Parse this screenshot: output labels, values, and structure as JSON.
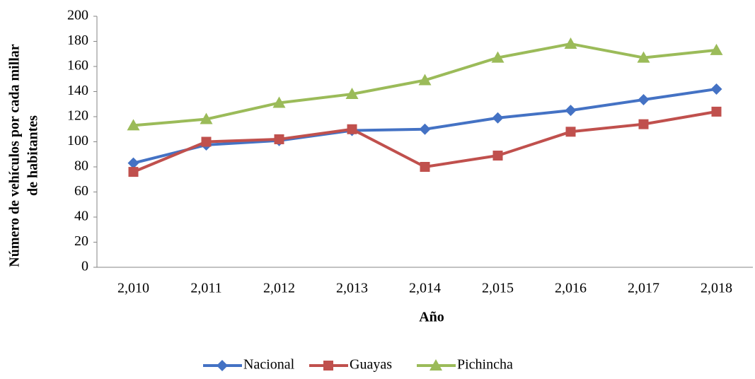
{
  "chart_data": {
    "type": "line",
    "y_label": [
      "Número de vehículos por cada millar",
      "de habitantes"
    ],
    "x_label": "Año",
    "categories": [
      "2,010",
      "2,011",
      "2,012",
      "2,013",
      "2,014",
      "2,015",
      "2,016",
      "2,017",
      "2,018"
    ],
    "series": [
      {
        "name": "Nacional",
        "color": "#4472c4",
        "marker": "diamond",
        "values": [
          83,
          97.5,
          101,
          109,
          110,
          119,
          125,
          133.5,
          142
        ]
      },
      {
        "name": "Guayas",
        "color": "#c0504d",
        "marker": "square",
        "values": [
          76,
          100,
          102,
          110,
          80,
          89,
          108,
          114,
          124
        ]
      },
      {
        "name": "Pichincha",
        "color": "#9bbb59",
        "marker": "triangle",
        "values": [
          113,
          118,
          131,
          138,
          149,
          167,
          178,
          167,
          173
        ]
      }
    ],
    "ylim": [
      0,
      200
    ],
    "yticks": [
      0,
      20,
      40,
      60,
      80,
      100,
      120,
      140,
      160,
      180,
      200
    ],
    "grid": false,
    "legend": "bottom"
  }
}
